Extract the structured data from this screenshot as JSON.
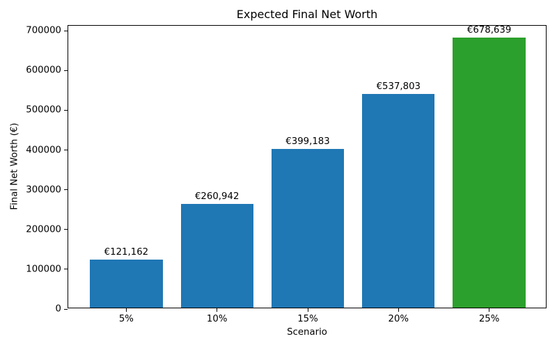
{
  "chart_data": {
    "type": "bar",
    "title": "Expected Final Net Worth",
    "xlabel": "Scenario",
    "ylabel": "Final Net Worth (€)",
    "categories": [
      "5%",
      "10%",
      "15%",
      "20%",
      "25%"
    ],
    "values": [
      121162,
      260942,
      399183,
      537803,
      678639
    ],
    "bar_labels": [
      "€121,162",
      "€260,942",
      "€399,183",
      "€537,803",
      "€678,639"
    ],
    "bar_colors": [
      "#1f77b4",
      "#1f77b4",
      "#1f77b4",
      "#1f77b4",
      "#2ca02c"
    ],
    "ylim": [
      0,
      712571
    ],
    "yticks": [
      0,
      100000,
      200000,
      300000,
      400000,
      500000,
      600000,
      700000
    ],
    "ytick_labels": [
      "0",
      "100000",
      "200000",
      "300000",
      "400000",
      "500000",
      "600000",
      "700000"
    ],
    "grid": false,
    "legend_position": "none",
    "bar_width_fraction": 0.8,
    "x_axis_span": [
      -0.64,
      4.64
    ]
  }
}
